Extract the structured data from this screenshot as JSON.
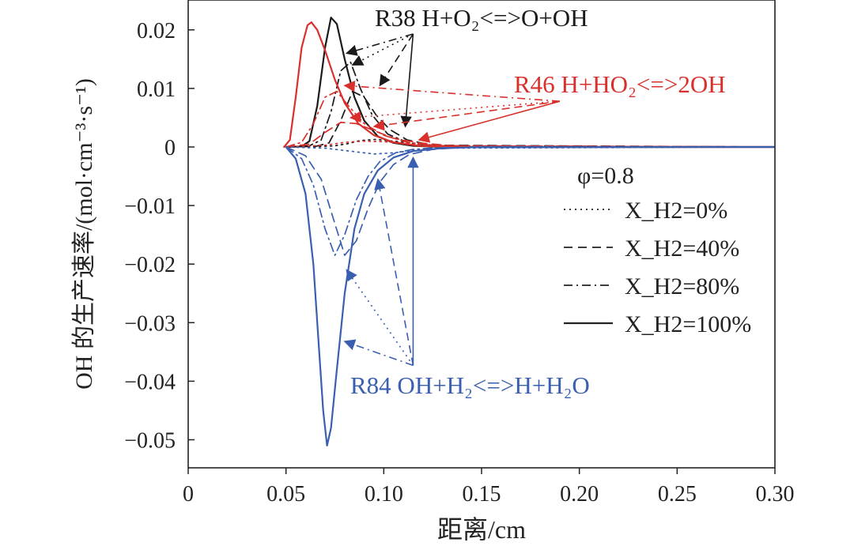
{
  "chart_data": {
    "type": "line",
    "xlabel": "距离/cm",
    "ylabel": "OH 的生产速率/(mol·cm⁻³·s⁻¹)",
    "xlim": [
      0,
      0.3
    ],
    "ylim": [
      -0.055,
      0.025
    ],
    "xticks": [
      0,
      0.05,
      0.1,
      0.15,
      0.2,
      0.25,
      0.3
    ],
    "xtick_labels": [
      "0",
      "0.05",
      "0.10",
      "0.15",
      "0.20",
      "0.25",
      "0.30"
    ],
    "yticks": [
      0.02,
      0.01,
      0,
      -0.01,
      -0.02,
      -0.03,
      -0.04,
      -0.05
    ],
    "ytick_labels": [
      "0.02",
      "0.01",
      "0",
      "−0.01",
      "−0.02",
      "−0.03",
      "−0.04",
      "−0.05"
    ],
    "legend": {
      "position": "center-right",
      "title": "φ=0.8",
      "entries": [
        {
          "label": "X_H2=0%",
          "dash": "dotted"
        },
        {
          "label": "X_H2=40%",
          "dash": "dashed"
        },
        {
          "label": "X_H2=80%",
          "dash": "dashdot"
        },
        {
          "label": "X_H2=100%",
          "dash": "solid"
        }
      ]
    },
    "colors": {
      "R38": "#1a1a1a",
      "R46": "#d9302c",
      "R84": "#3a5fb0"
    },
    "annotations": [
      {
        "text": "R38 H+O₂<=>O+OH",
        "color": "#1a1a1a",
        "arrow_origin": [
          0.115,
          0.0193
        ],
        "arrow_targets": [
          [
            0.081,
            0.016
          ],
          [
            0.084,
            0.014
          ],
          [
            0.098,
            0.0105
          ],
          [
            0.111,
            0.0035
          ]
        ]
      },
      {
        "text": "R46 H+HO₂<=>2OH",
        "color": "#d9302c",
        "arrow_origin": [
          0.19,
          0.0078
        ],
        "arrow_targets": [
          [
            0.08,
            0.0105
          ],
          [
            0.083,
            0.005
          ],
          [
            0.095,
            0.0035
          ],
          [
            0.118,
            0.0012
          ]
        ]
      },
      {
        "text": "R84 OH+H₂<=>H+H₂O",
        "color": "#3a5fb0",
        "arrow_origin": [
          0.115,
          -0.0373
        ],
        "arrow_targets": [
          [
            0.08,
            -0.0332
          ],
          [
            0.081,
            -0.021
          ],
          [
            0.097,
            -0.0055
          ],
          [
            0.115,
            -0.0018
          ]
        ]
      }
    ],
    "series": [
      {
        "reaction": "R38",
        "x_h2": "0%",
        "x": [
          0.05,
          0.065,
          0.075,
          0.082,
          0.088,
          0.096,
          0.105,
          0.115,
          0.13,
          0.3
        ],
        "values": [
          0,
          5e-05,
          0.0002,
          0.0006,
          0.0011,
          0.0013,
          0.001,
          0.0006,
          0.0002,
          0
        ]
      },
      {
        "reaction": "R38",
        "x_h2": "40%",
        "x": [
          0.05,
          0.065,
          0.072,
          0.078,
          0.084,
          0.09,
          0.096,
          0.103,
          0.112,
          0.125,
          0.3
        ],
        "values": [
          0,
          0.0001,
          0.0007,
          0.0045,
          0.0095,
          0.0085,
          0.0055,
          0.003,
          0.0012,
          0.0003,
          0
        ]
      },
      {
        "reaction": "R38",
        "x_h2": "80%",
        "x": [
          0.05,
          0.062,
          0.068,
          0.073,
          0.078,
          0.083,
          0.088,
          0.094,
          0.102,
          0.112,
          0.125,
          0.3
        ],
        "values": [
          0,
          0.0002,
          0.0012,
          0.006,
          0.013,
          0.0145,
          0.01,
          0.0055,
          0.0022,
          0.0008,
          0.0002,
          0
        ]
      },
      {
        "reaction": "R38",
        "x_h2": "100%",
        "x": [
          0.05,
          0.058,
          0.062,
          0.066,
          0.07,
          0.073,
          0.076,
          0.08,
          0.085,
          0.09,
          0.097,
          0.105,
          0.115,
          0.13,
          0.3
        ],
        "values": [
          0,
          0.0001,
          0.001,
          0.007,
          0.017,
          0.0221,
          0.021,
          0.015,
          0.0085,
          0.0045,
          0.0018,
          0.0007,
          0.0002,
          0,
          0
        ]
      },
      {
        "reaction": "R46",
        "x_h2": "0%",
        "x": [
          0.05,
          0.07,
          0.08,
          0.09,
          0.1,
          0.115,
          0.13,
          0.3
        ],
        "values": [
          0,
          0.0003,
          0.0008,
          0.001,
          0.0009,
          0.0005,
          0.0002,
          0
        ]
      },
      {
        "reaction": "R46",
        "x_h2": "40%",
        "x": [
          0.05,
          0.062,
          0.07,
          0.078,
          0.086,
          0.095,
          0.105,
          0.118,
          0.135,
          0.3
        ],
        "values": [
          0,
          0.0005,
          0.0025,
          0.0042,
          0.004,
          0.0028,
          0.0015,
          0.0007,
          0.0002,
          0
        ]
      },
      {
        "reaction": "R46",
        "x_h2": "80%",
        "x": [
          0.05,
          0.058,
          0.064,
          0.07,
          0.076,
          0.082,
          0.09,
          0.1,
          0.112,
          0.128,
          0.3
        ],
        "values": [
          0,
          0.0008,
          0.004,
          0.0085,
          0.0095,
          0.007,
          0.004,
          0.002,
          0.0008,
          0.0002,
          0
        ]
      },
      {
        "reaction": "R46",
        "x_h2": "100%",
        "x": [
          0.049,
          0.052,
          0.055,
          0.058,
          0.061,
          0.063,
          0.066,
          0.07,
          0.075,
          0.08,
          0.087,
          0.095,
          0.105,
          0.118,
          0.135,
          0.3
        ],
        "values": [
          0,
          0.0012,
          0.0085,
          0.017,
          0.0208,
          0.0213,
          0.02,
          0.0165,
          0.0115,
          0.0075,
          0.004,
          0.002,
          0.0008,
          0.0002,
          0,
          0
        ]
      },
      {
        "reaction": "R84",
        "x_h2": "0%",
        "x": [
          0.05,
          0.07,
          0.085,
          0.095,
          0.105,
          0.115,
          0.13,
          0.3
        ],
        "values": [
          0,
          -0.0002,
          -0.0008,
          -0.0012,
          -0.001,
          -0.0006,
          -0.0002,
          0
        ]
      },
      {
        "reaction": "R84",
        "x_h2": "40%",
        "x": [
          0.05,
          0.06,
          0.068,
          0.074,
          0.08,
          0.086,
          0.092,
          0.098,
          0.105,
          0.113,
          0.125,
          0.14,
          0.3
        ],
        "values": [
          0,
          -0.0015,
          -0.0055,
          -0.012,
          -0.0185,
          -0.016,
          -0.0105,
          -0.006,
          -0.003,
          -0.0013,
          -0.0004,
          -0.0001,
          0
        ]
      },
      {
        "reaction": "R84",
        "x_h2": "80%",
        "x": [
          0.05,
          0.058,
          0.064,
          0.07,
          0.075,
          0.08,
          0.086,
          0.092,
          0.098,
          0.106,
          0.115,
          0.128,
          0.3
        ],
        "values": [
          0,
          -0.002,
          -0.0065,
          -0.014,
          -0.0185,
          -0.015,
          -0.009,
          -0.005,
          -0.0025,
          -0.001,
          -0.0004,
          -0.0001,
          0
        ]
      },
      {
        "reaction": "R84",
        "x_h2": "100%",
        "x": [
          0.05,
          0.055,
          0.06,
          0.064,
          0.067,
          0.069,
          0.071,
          0.073,
          0.076,
          0.08,
          0.085,
          0.09,
          0.097,
          0.105,
          0.115,
          0.13,
          0.15,
          0.3
        ],
        "values": [
          0,
          -0.002,
          -0.008,
          -0.02,
          -0.035,
          -0.045,
          -0.051,
          -0.048,
          -0.038,
          -0.025,
          -0.014,
          -0.008,
          -0.004,
          -0.0018,
          -0.0007,
          -0.0002,
          0,
          0
        ]
      }
    ]
  }
}
